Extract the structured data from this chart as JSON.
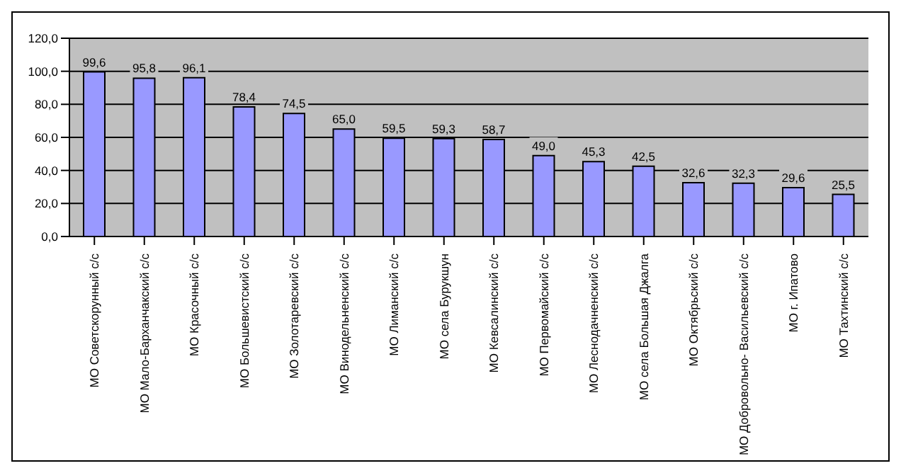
{
  "chart_data": {
    "type": "bar",
    "categories": [
      "МО Советскорунный с/с",
      "МО Мало-Барханчакский с/с",
      "МО Красочный с/с",
      "МО Большевистский с/с",
      "МО Золотаревский с/с",
      "МО Винодельненский с/с",
      "МО Лиманский с/с",
      "МО села Бурукшун",
      "МО Кевсалинский с/с",
      "МО Первомайский с/с",
      "МО Леснодачненский  с/с",
      "МО села Большая Джалга",
      "МО Октябрьский с/с",
      "МО Добровольно- Васильевский с/с",
      "МО г. Ипатово",
      "МО Тахтинский с/с"
    ],
    "values": [
      99.6,
      95.8,
      96.1,
      78.4,
      74.5,
      65.0,
      59.5,
      59.3,
      58.7,
      49.0,
      45.3,
      42.5,
      32.6,
      32.3,
      29.6,
      25.5
    ],
    "value_labels": [
      "99,6",
      "95,8",
      "96,1",
      "78,4",
      "74,5",
      "65,0",
      "59,5",
      "59,3",
      "58,7",
      "49,0",
      "45,3",
      "42,5",
      "32,6",
      "32,3",
      "29,6",
      "25,5"
    ],
    "color": "#9999ff",
    "ylim": [
      0,
      120
    ],
    "yticks": [
      {
        "value": 0,
        "label": "0,0"
      },
      {
        "value": 20,
        "label": "20,0"
      },
      {
        "value": 40,
        "label": "40,0"
      },
      {
        "value": 60,
        "label": "60,0"
      },
      {
        "value": 80,
        "label": "80,0"
      },
      {
        "value": 100,
        "label": "100,0"
      },
      {
        "value": 120,
        "label": "120,0"
      }
    ],
    "grid": "y",
    "legend": false
  }
}
